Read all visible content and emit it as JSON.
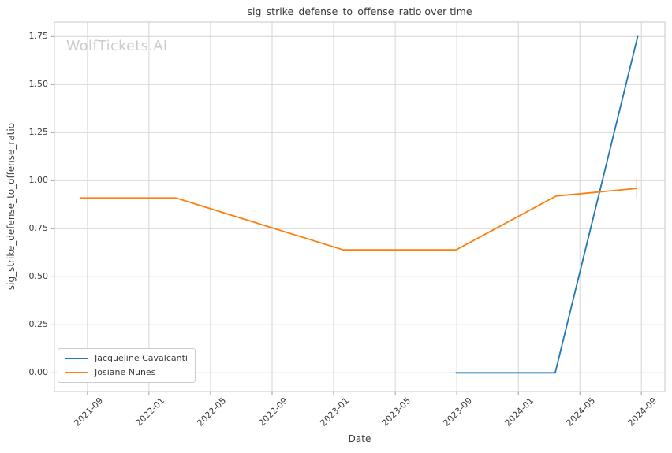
{
  "title": "sig_strike_defense_to_offense_ratio over time",
  "watermark": "WolfTickets.AI",
  "axes": {
    "x_label": "Date",
    "y_label": "sig_strike_defense_to_offense_ratio"
  },
  "colors": {
    "background": "#ffffff",
    "grid": "#d4d4d4",
    "spine": "#c8c8c8",
    "tick_mark": "#999999",
    "text": "#3a3a3a",
    "watermark": "#cbcbcb",
    "legend_border": "#cccccc",
    "series_blue": "#1f77b4",
    "series_orange": "#ff7f0e"
  },
  "legend": {
    "position": "lower left",
    "items": [
      "Jacqueline Cavalcanti",
      "Josiane Nunes"
    ]
  },
  "chart_data": {
    "type": "line",
    "title": "sig_strike_defense_to_offense_ratio over time",
    "xlabel": "Date",
    "ylabel": "sig_strike_defense_to_offense_ratio",
    "grid": true,
    "legend_position": "lower left",
    "xlim": [
      "2021-06-27",
      "2024-10-17"
    ],
    "ylim": [
      -0.097,
      1.825
    ],
    "x_ticks": [
      "2021-09",
      "2022-01",
      "2022-05",
      "2022-09",
      "2023-01",
      "2023-05",
      "2023-09",
      "2024-01",
      "2024-05",
      "2024-09"
    ],
    "y_ticks": [
      {
        "value": 0.0,
        "label": "0.00"
      },
      {
        "value": 0.25,
        "label": "0.25"
      },
      {
        "value": 0.5,
        "label": "0.50"
      },
      {
        "value": 0.75,
        "label": "0.75"
      },
      {
        "value": 1.0,
        "label": "1.00"
      },
      {
        "value": 1.25,
        "label": "1.25"
      },
      {
        "value": 1.5,
        "label": "1.50"
      },
      {
        "value": 1.75,
        "label": "1.75"
      }
    ],
    "series": [
      {
        "name": "Jacqueline Cavalcanti",
        "color": "#1f77b4",
        "points": [
          {
            "date": "2023-08-30",
            "value": 0.0
          },
          {
            "date": "2024-03-13",
            "value": 0.0
          },
          {
            "date": "2024-08-24",
            "value": 1.75
          }
        ]
      },
      {
        "name": "Josiane Nunes",
        "color": "#ff7f0e",
        "points": [
          {
            "date": "2021-08-17",
            "value": 0.91
          },
          {
            "date": "2022-02-24",
            "value": 0.91
          },
          {
            "date": "2023-01-20",
            "value": 0.64
          },
          {
            "date": "2023-08-30",
            "value": 0.64
          },
          {
            "date": "2024-03-15",
            "value": 0.92
          },
          {
            "date": "2024-08-22",
            "value": 0.96
          }
        ],
        "end_tick": {
          "date": "2024-08-22",
          "y_low": 0.91,
          "y_high": 1.01
        }
      }
    ]
  }
}
